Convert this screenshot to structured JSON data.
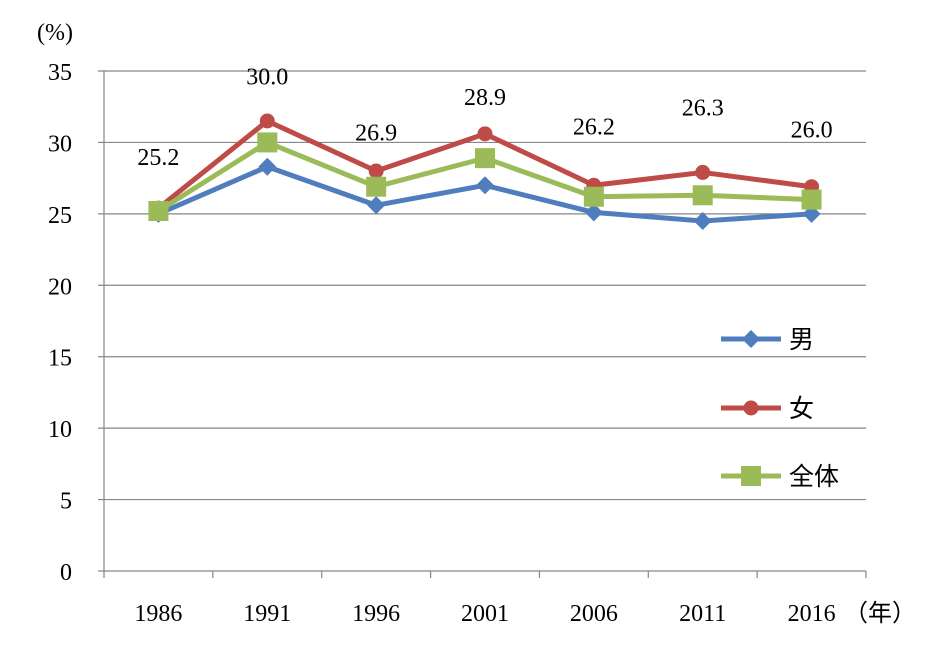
{
  "chart_data": {
    "type": "line",
    "y_unit_label": "(%)",
    "x_unit_label": "（年）",
    "categories": [
      "1986",
      "1991",
      "1996",
      "2001",
      "2006",
      "2011",
      "2016"
    ],
    "ylim": [
      0,
      35
    ],
    "yticks": [
      0,
      5,
      10,
      15,
      20,
      25,
      30,
      35
    ],
    "grid": true,
    "legend_position": "right",
    "series": [
      {
        "name": "男",
        "key": "male",
        "marker": "diamond",
        "color": "#4F7DBE",
        "values": [
          25.0,
          28.3,
          25.6,
          27.0,
          25.1,
          24.5,
          25.0
        ]
      },
      {
        "name": "女",
        "key": "female",
        "marker": "circle",
        "color": "#BE4B48",
        "values": [
          25.4,
          31.5,
          28.0,
          30.6,
          27.0,
          27.9,
          26.9
        ]
      },
      {
        "name": "全体",
        "key": "total",
        "marker": "square",
        "color": "#9BBB59",
        "values": [
          25.2,
          30.0,
          26.9,
          28.9,
          26.2,
          26.3,
          26.0
        ]
      }
    ],
    "data_labels": [
      "25.2",
      "30.0",
      "26.9",
      "28.9",
      "26.2",
      "26.3",
      "26.0"
    ]
  }
}
